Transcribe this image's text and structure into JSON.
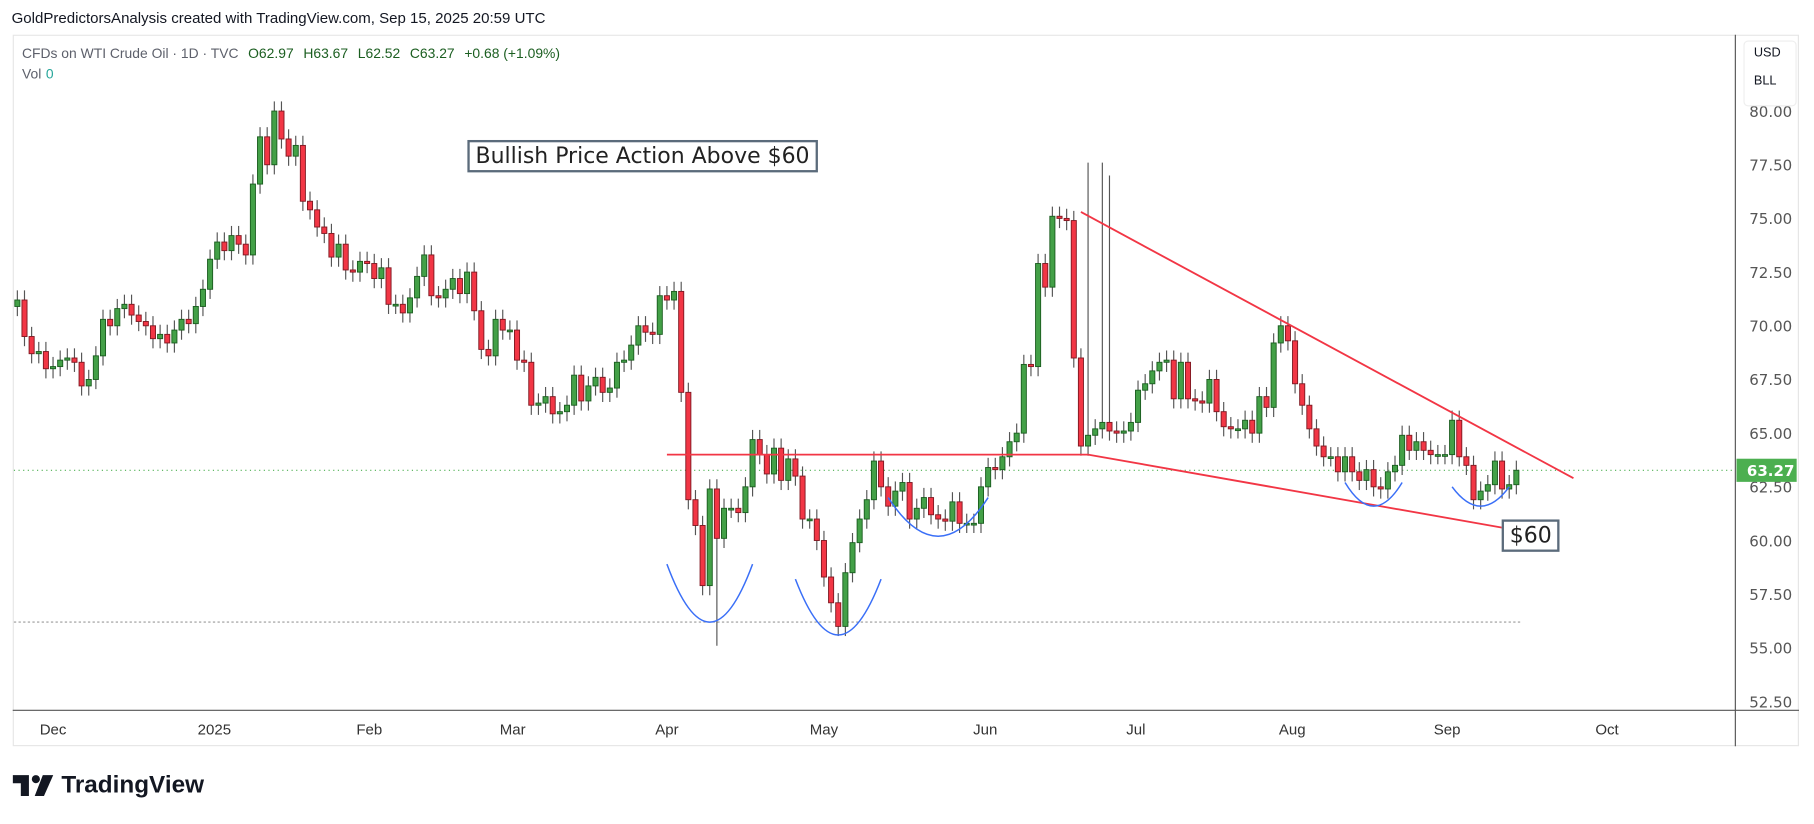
{
  "credit": "GoldPredictorsAnalysis created with TradingView.com, Sep 15, 2025 20:59 UTC",
  "legend": {
    "symbol": "CFDs on WTI Crude Oil · 1D · TVC",
    "open": "O62.97",
    "high": "H63.67",
    "low": "L62.52",
    "close": "C63.27",
    "change": "+0.68 (+1.09%)",
    "vol_label": "Vol",
    "vol_value": "0"
  },
  "unit": {
    "currency": "USD",
    "measure": "BLL"
  },
  "logo_text": "TradingView",
  "colors": {
    "up": "#43a047",
    "up_border": "#1b5e20",
    "down": "#f23645",
    "down_border": "#801922",
    "trend": "#f23645",
    "arc": "#3a6ff7",
    "last": "#4caf50"
  },
  "chart_data": {
    "type": "candlestick",
    "ylim": [
      52.5,
      81.5
    ],
    "y_ticks": [
      "80.00",
      "77.50",
      "75.00",
      "72.50",
      "70.00",
      "67.50",
      "65.00",
      "62.50",
      "60.00",
      "57.50",
      "55.00",
      "52.50"
    ],
    "y_tick_values": [
      80,
      77.5,
      75,
      72.5,
      70,
      67.5,
      65,
      62.5,
      60,
      57.5,
      55,
      52.5
    ],
    "x_ticks": [
      {
        "label": "Dec",
        "index": 5
      },
      {
        "label": "2025",
        "index": 27.6
      },
      {
        "label": "Feb",
        "index": 49.3
      },
      {
        "label": "Mar",
        "index": 69.4
      },
      {
        "label": "Apr",
        "index": 91
      },
      {
        "label": "May",
        "index": 113
      },
      {
        "label": "Jun",
        "index": 135.6
      },
      {
        "label": "Jul",
        "index": 156.7
      },
      {
        "label": "Aug",
        "index": 178.6
      },
      {
        "label": "Sep",
        "index": 200.3
      },
      {
        "label": "Oct",
        "index": 222.7
      }
    ],
    "first_open": 70.9,
    "closes": [
      71.2,
      69.5,
      68.7,
      68.8,
      68.0,
      68.1,
      68.4,
      68.5,
      68.3,
      67.2,
      67.5,
      68.6,
      70.3,
      70.0,
      70.8,
      71.0,
      70.5,
      70.2,
      70.0,
      69.4,
      69.6,
      69.2,
      69.8,
      70.3,
      70.1,
      70.9,
      71.7,
      73.1,
      73.9,
      73.5,
      74.2,
      73.8,
      73.3,
      76.6,
      78.8,
      77.5,
      80.0,
      78.7,
      77.9,
      78.4,
      75.8,
      75.4,
      74.6,
      74.3,
      73.2,
      73.8,
      72.6,
      72.5,
      73.0,
      72.9,
      72.2,
      72.7,
      71.0,
      71.0,
      70.6,
      71.3,
      72.3,
      73.3,
      71.4,
      71.3,
      71.7,
      72.2,
      71.5,
      72.5,
      70.7,
      68.9,
      68.6,
      70.3,
      69.8,
      69.8,
      68.4,
      68.3,
      66.3,
      66.4,
      66.7,
      65.9,
      66.0,
      66.3,
      67.7,
      66.5,
      67.2,
      67.6,
      66.9,
      67.1,
      68.3,
      68.4,
      69.1,
      70.0,
      69.7,
      69.6,
      71.4,
      71.2,
      71.6,
      66.9,
      61.9,
      60.7,
      57.9,
      62.4,
      60.1,
      61.5,
      61.5,
      61.3,
      62.5,
      64.7,
      64.0,
      63.1,
      64.3,
      62.8,
      63.8,
      63.0,
      61.0,
      61.0,
      60.0,
      58.3,
      57.1,
      56.0,
      58.5,
      59.9,
      61.0,
      61.9,
      63.7,
      62.5,
      61.6,
      62.3,
      62.7,
      61.0,
      61.5,
      62.0,
      61.2,
      61.0,
      60.9,
      61.8,
      60.8,
      60.8,
      60.8,
      62.5,
      63.4,
      63.3,
      63.9,
      64.6,
      65.0,
      68.2,
      68.1,
      72.9,
      71.8,
      75.1,
      75.0,
      74.9,
      68.5,
      64.4,
      64.9,
      65.2,
      65.5,
      65.1,
      65.0,
      65.1,
      65.5,
      67.0,
      67.3,
      67.9,
      68.3,
      68.4,
      66.6,
      68.3,
      66.6,
      66.5,
      66.4,
      67.5,
      66.0,
      65.3,
      65.2,
      65.2,
      65.6,
      65.0,
      66.7,
      66.2,
      69.2,
      70.0,
      69.3,
      67.3,
      66.3,
      65.2,
      64.4,
      63.9,
      63.9,
      63.2,
      63.9,
      63.2,
      62.8,
      63.3,
      62.5,
      62.4,
      63.2,
      63.5,
      64.9,
      64.2,
      64.6,
      64.2,
      64.0,
      64.0,
      64.0,
      65.6,
      63.9,
      63.5,
      61.9,
      62.3,
      62.6,
      63.7,
      62.4,
      62.6,
      63.27
    ],
    "last_price": "63.27",
    "support_level": 56.2,
    "drawings": {
      "resistance": {
        "from_index": 91,
        "to_index": 150,
        "price": 64.0
      },
      "upper_trendline": {
        "from": [
          149,
          75.3
        ],
        "to": [
          218,
          62.9
        ]
      },
      "lower_trendline": {
        "from": [
          150,
          64.0
        ],
        "to": [
          208,
          60.6
        ]
      },
      "arcs": [
        {
          "center": 97,
          "bottom": 56.2,
          "half_width": 6,
          "top": 58.9
        },
        {
          "center": 115,
          "bottom": 55.6,
          "half_width": 6,
          "top": 58.2
        },
        {
          "center": 129,
          "bottom": 60.2,
          "half_width": 7,
          "top": 62.0
        },
        {
          "center": 190,
          "bottom": 61.6,
          "half_width": 4,
          "top": 62.7
        },
        {
          "center": 205,
          "bottom": 61.6,
          "half_width": 4,
          "top": 62.5
        }
      ]
    },
    "annotations": {
      "title": "Bullish Price Action Above $60",
      "level": "$60"
    }
  }
}
